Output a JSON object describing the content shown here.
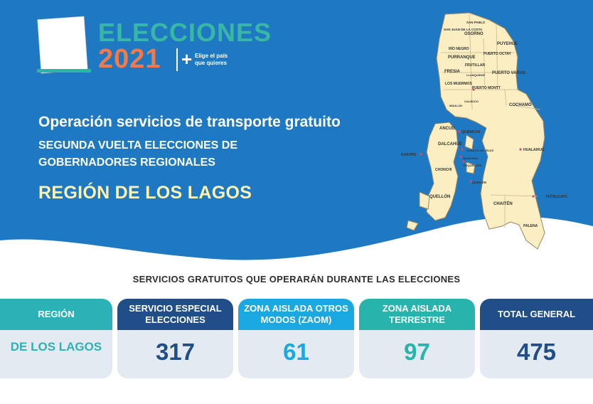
{
  "logo": {
    "title": "ELECCIONES",
    "year": "2021",
    "plus": "+",
    "tagline": "Elige el país que quieres"
  },
  "header": {
    "title": "Operación servicios de transporte gratuito",
    "subtitle_line1": "SEGUNDA VUELTA ELECCIONES DE",
    "subtitle_line2": "GOBERNADORES REGIONALES",
    "region": "REGIÓN DE LOS LAGOS"
  },
  "map": {
    "labels": [
      "SAN PABLO",
      "SAN JUAN DE LA COSTA",
      "OSORNO",
      "PUYEHUE",
      "RÍO NEGRO",
      "PUERTO OCTAY",
      "PURRANQUE",
      "FRUTILLAR",
      "FRESIA",
      "LLANQUIHUE",
      "PUERTO VARAS",
      "LOS MUERMOS",
      "PUERTO MONTT",
      "MAULLÍN",
      "CALBUCO",
      "COCHAMÓ",
      "ANCUD",
      "QUEMCHI",
      "DALCAHUE",
      "CURACO DE VÉLEZ",
      "QUINCHAO",
      "HUALAIHUÉ",
      "CASTRO",
      "CHONCHI",
      "PUQUELDÓN",
      "QUEILÉN",
      "QUELLÓN",
      "FUTALEUFÚ",
      "CHAITÉN",
      "PALENA"
    ]
  },
  "colors": {
    "banner": "#1e78c2",
    "map_land": "#fbeec2",
    "region_text": "#fff3b0"
  },
  "services": {
    "section_title": "SERVICIOS GRATUITOS QUE OPERARÁN DURANTE LAS ELECCIONES",
    "region_header": "REGIÓN",
    "region_value": "DE LOS LAGOS",
    "columns": [
      {
        "header": "SERVICIO ESPECIAL ELECCIONES",
        "value": "317"
      },
      {
        "header": "ZONA AISLADA OTROS MODOS (ZAOM)",
        "value": "61"
      },
      {
        "header": "ZONA AISLADA TERRESTRE",
        "value": "97"
      },
      {
        "header": "TOTAL GENERAL",
        "value": "475"
      }
    ]
  }
}
